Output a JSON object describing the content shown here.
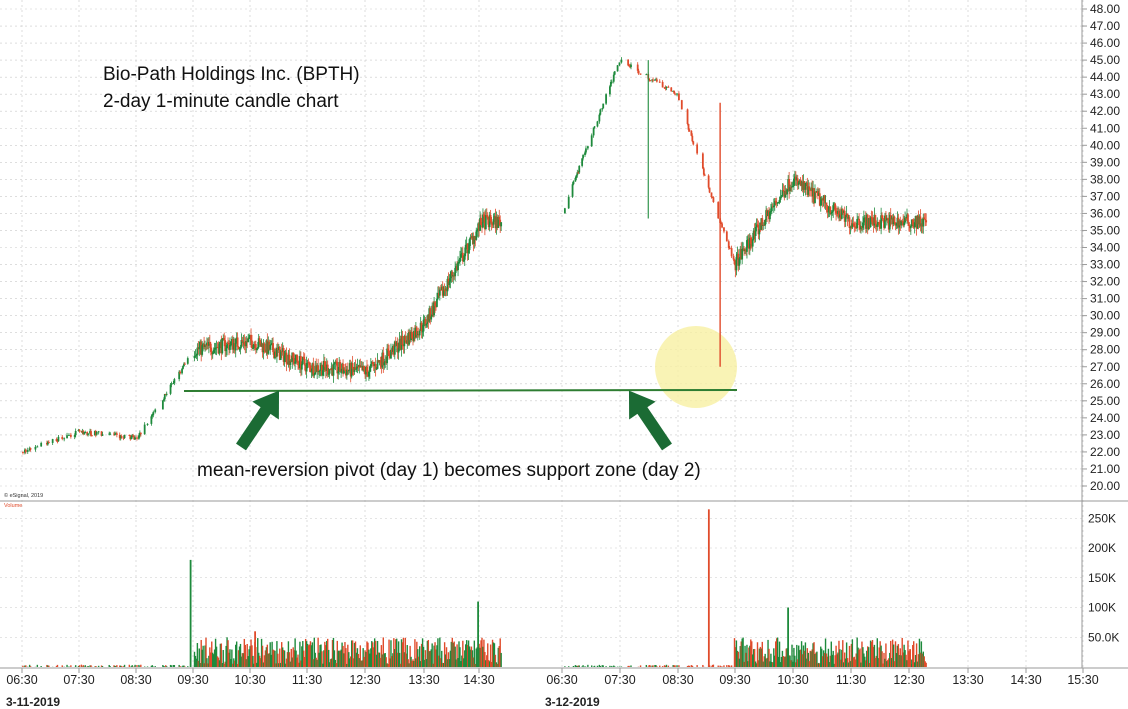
{
  "annotations": {
    "title_line1": "Bio-Path Holdings Inc. (BPTH)",
    "title_line2": "2-day 1-minute candle chart",
    "note": "mean-reversion pivot (day 1) becomes support zone (day 2)",
    "copyright": "© eSignal, 2019",
    "volume_label": "Volume"
  },
  "colors": {
    "up": "#1e8a3c",
    "down": "#e04b2b",
    "support_line": "#2e7d32",
    "arrow": "#1b6b34",
    "highlight": "#f7f0a0",
    "grid": "#c9c9c9",
    "axis": "#9a9a9a"
  },
  "chart_data": [
    {
      "type": "candlestick",
      "title": "Bio-Path Holdings Inc. (BPTH)",
      "subtitle": "2-day 1-minute candle chart",
      "x_ticks": [
        "06:30",
        "07:30",
        "08:30",
        "09:30",
        "10:30",
        "11:30",
        "12:30",
        "13:30",
        "14:30",
        "06:30",
        "07:30",
        "08:30",
        "09:30",
        "10:30",
        "11:30",
        "12:30",
        "13:30",
        "14:30",
        "15:30"
      ],
      "dates": [
        "3-11-2019",
        "3-12-2019"
      ],
      "y_ticks": [
        "48.00",
        "47.00",
        "46.00",
        "45.00",
        "44.00",
        "43.00",
        "42.00",
        "41.00",
        "40.00",
        "39.00",
        "38.00",
        "37.00",
        "36.00",
        "35.00",
        "34.00",
        "33.00",
        "32.00",
        "31.00",
        "30.00",
        "29.00",
        "28.00",
        "27.00",
        "26.00",
        "25.00",
        "24.00",
        "23.00",
        "22.00",
        "21.00",
        "20.00"
      ],
      "ylim": [
        19.5,
        48.2
      ],
      "grid": true,
      "support_level": 25.5,
      "price_path": [
        {
          "date": "3-11-2019",
          "time": "06:30",
          "price": 22.0
        },
        {
          "date": "3-11-2019",
          "time": "07:30",
          "price": 23.2
        },
        {
          "date": "3-11-2019",
          "time": "08:30",
          "price": 22.8
        },
        {
          "date": "3-11-2019",
          "time": "09:30",
          "price": 28.0
        },
        {
          "date": "3-11-2019",
          "time": "10:30",
          "price": 28.5
        },
        {
          "date": "3-11-2019",
          "time": "11:30",
          "price": 27.0
        },
        {
          "date": "3-11-2019",
          "time": "12:30",
          "price": 26.7
        },
        {
          "date": "3-11-2019",
          "time": "13:30",
          "price": 29.5
        },
        {
          "date": "3-11-2019",
          "time": "14:30",
          "price": 35.5
        },
        {
          "date": "3-12-2019",
          "time": "06:30",
          "price": 36.0
        },
        {
          "date": "3-12-2019",
          "time": "07:30",
          "price": 45.0
        },
        {
          "date": "3-12-2019",
          "time": "08:30",
          "price": 43.0
        },
        {
          "date": "3-12-2019",
          "time": "09:30",
          "price": 33.0
        },
        {
          "date": "3-12-2019",
          "time": "10:30",
          "price": 38.0
        },
        {
          "date": "3-12-2019",
          "time": "11:30",
          "price": 35.5
        },
        {
          "date": "3-12-2019",
          "time": "12:30",
          "price": 35.5
        }
      ]
    },
    {
      "type": "bar",
      "series_label": "Volume",
      "y_ticks": [
        "250K",
        "200K",
        "150K",
        "100K",
        "50.0K"
      ],
      "ylim": [
        0,
        270000
      ],
      "volume_path": [
        {
          "date": "3-11-2019",
          "time": "09:30",
          "volume": 180000
        },
        {
          "date": "3-11-2019",
          "time": "10:30",
          "volume": 60000
        },
        {
          "date": "3-11-2019",
          "time": "14:30",
          "volume": 110000
        },
        {
          "date": "3-12-2019",
          "time": "09:00",
          "volume": 265000
        },
        {
          "date": "3-12-2019",
          "time": "10:30",
          "volume": 100000
        },
        {
          "date": "3-12-2019",
          "time": "12:30",
          "volume": 30000
        }
      ]
    }
  ]
}
